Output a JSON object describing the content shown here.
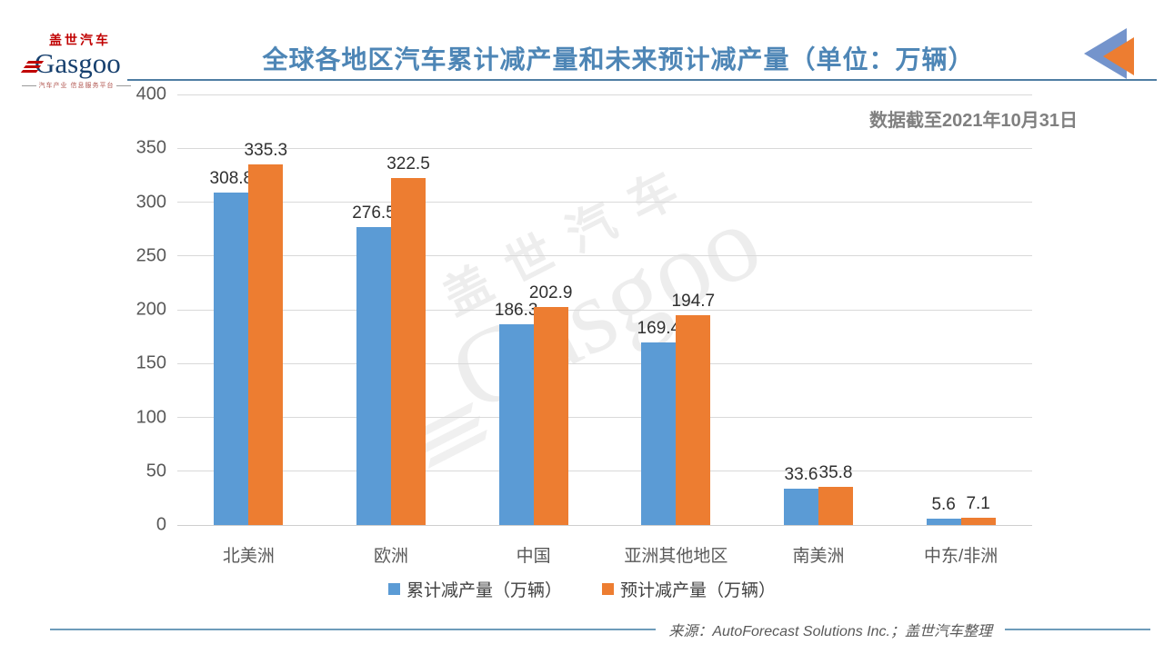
{
  "logo": {
    "cn": "盖世汽车",
    "en": "Gasgoo",
    "tagline": "汽车产业 信息服务平台"
  },
  "header": {
    "title": "全球各地区汽车累计减产量和未来预计减产量（单位：万辆）"
  },
  "annotation": {
    "data_cutoff": "数据截至2021年10月31日"
  },
  "chart_data": {
    "type": "bar",
    "title": "全球各地区汽车累计减产量和未来预计减产量（单位：万辆）",
    "categories": [
      "北美洲",
      "欧洲",
      "中国",
      "亚洲其他地区",
      "南美洲",
      "中东/非洲"
    ],
    "series": [
      {
        "name": "累计减产量（万辆）",
        "color": "#5B9BD5",
        "values": [
          308.8,
          276.5,
          186.3,
          169.4,
          33.6,
          5.6
        ]
      },
      {
        "name": "预计减产量（万辆）",
        "color": "#ED7D31",
        "values": [
          335.3,
          322.5,
          202.9,
          194.7,
          35.8,
          7.1
        ]
      }
    ],
    "xlabel": "",
    "ylabel": "",
    "ylim": [
      0,
      400
    ],
    "yticks": [
      0,
      50,
      100,
      150,
      200,
      250,
      300,
      350,
      400
    ],
    "grid": true,
    "legend_position": "bottom",
    "value_labels": true
  },
  "watermark": {
    "cn": "盖世汽车",
    "en": "Gasgoo"
  },
  "footer": {
    "source": "来源：AutoForecast Solutions Inc.；盖世汽车整理"
  },
  "colors": {
    "title": "#4E86B6",
    "series_cumulative": "#5B9BD5",
    "series_forecast": "#ED7D31",
    "axis_text": "#595959",
    "gridline": "#D9D9D9",
    "annotation_text": "#808080",
    "header_rule": "#4F7EA3",
    "triangle_blue": "#7494CC",
    "triangle_orange": "#ED7D31",
    "logo_red": "#C00000",
    "logo_navy": "#17406E"
  }
}
